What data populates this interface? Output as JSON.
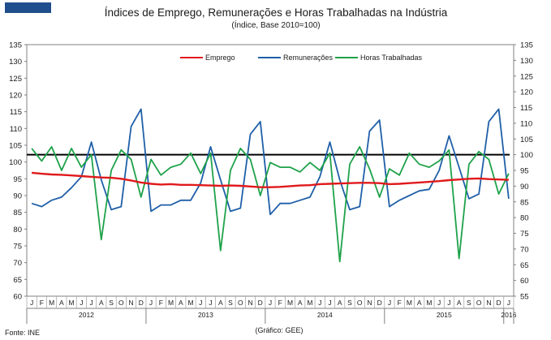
{
  "header": {
    "logo_blocks": 4,
    "logo_color": "#1f4e8c"
  },
  "footer": {
    "source": "Fonte: INE",
    "credit": "(Gráfico: GEE)"
  },
  "chart_data": {
    "type": "line",
    "title": "Índices de Emprego, Remunerações e Horas Trabalhadas na Indústria",
    "subtitle": "(Índice, Base 2010=100)",
    "y_left": {
      "min": 60,
      "max": 135,
      "step": 5
    },
    "y_right": {
      "min": 55,
      "max": 135,
      "step": 5
    },
    "month_labels": [
      "J",
      "F",
      "M",
      "A",
      "M",
      "J",
      "J",
      "A",
      "S",
      "O",
      "N",
      "D",
      "J",
      "F",
      "M",
      "A",
      "M",
      "J",
      "J",
      "A",
      "S",
      "O",
      "N",
      "D",
      "J",
      "F",
      "M",
      "A",
      "M",
      "J",
      "J",
      "A",
      "S",
      "O",
      "N",
      "D",
      "J",
      "F",
      "M",
      "A",
      "M",
      "J",
      "J",
      "A",
      "S",
      "O",
      "N",
      "D",
      "J"
    ],
    "years": [
      {
        "label": "2012",
        "start_index": 0,
        "months": 12
      },
      {
        "label": "2013",
        "start_index": 12,
        "months": 12
      },
      {
        "label": "2014",
        "start_index": 24,
        "months": 12
      },
      {
        "label": "2015",
        "start_index": 36,
        "months": 12
      },
      {
        "label": "2016",
        "start_index": 48,
        "months": 1
      }
    ],
    "reference_line": {
      "value": 100,
      "axis": "right",
      "color": "#000000"
    },
    "legend_position": "top",
    "series": [
      {
        "name": "Emprego",
        "axis": "left",
        "color": "#e0191c",
        "values": [
          96.8,
          96.5,
          96.3,
          96.2,
          96.0,
          95.8,
          95.6,
          95.4,
          95.3,
          95.0,
          94.5,
          93.9,
          93.5,
          93.3,
          93.4,
          93.2,
          93.2,
          93.1,
          93.0,
          92.9,
          93.0,
          92.9,
          92.7,
          92.5,
          92.5,
          92.6,
          92.8,
          93.0,
          93.1,
          93.4,
          93.5,
          93.6,
          93.7,
          93.8,
          93.8,
          93.7,
          93.4,
          93.5,
          93.7,
          93.9,
          94.1,
          94.3,
          94.6,
          94.8,
          95.0,
          95.1,
          94.9,
          94.8,
          94.7
        ]
      },
      {
        "name": "Remunerações",
        "axis": "right",
        "color": "#1f5fa8",
        "values": [
          84.5,
          83.5,
          85.5,
          86.5,
          89.5,
          93.0,
          104.0,
          92.0,
          82.5,
          83.5,
          109.0,
          114.5,
          82.0,
          84.0,
          84.0,
          85.5,
          85.5,
          91.0,
          102.5,
          92.0,
          82.0,
          83.0,
          106.5,
          110.5,
          81.0,
          84.5,
          84.5,
          85.5,
          86.5,
          93.0,
          104.0,
          92.0,
          82.5,
          83.5,
          107.5,
          111.0,
          83.5,
          85.5,
          87.0,
          88.5,
          89.0,
          95.0,
          106.0,
          96.0,
          86.0,
          87.5,
          110.5,
          114.5,
          86.0
        ]
      },
      {
        "name": "Horas Trabalhadas",
        "axis": "right",
        "color": "#1fa24a",
        "values": [
          102.0,
          98.0,
          102.5,
          95.0,
          102.0,
          96.0,
          100.0,
          73.0,
          95.0,
          101.5,
          98.5,
          86.5,
          98.5,
          93.5,
          96.0,
          97.0,
          100.5,
          94.0,
          100.5,
          69.5,
          95.0,
          102.0,
          98.5,
          87.0,
          97.5,
          96.0,
          96.0,
          94.5,
          97.5,
          95.0,
          100.5,
          66.0,
          97.0,
          102.5,
          95.5,
          86.5,
          95.5,
          93.5,
          100.5,
          97.0,
          96.0,
          98.0,
          101.5,
          67.0,
          97.0,
          101.0,
          98.5,
          87.5,
          94.0
        ]
      }
    ]
  }
}
